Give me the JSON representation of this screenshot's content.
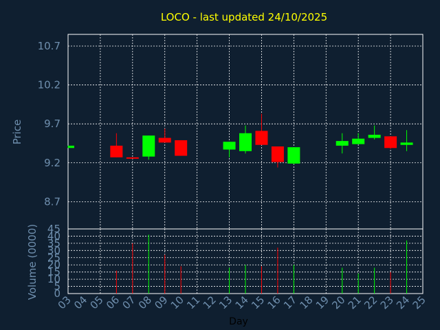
{
  "title": "LOCO - last updated 24/10/2025",
  "colors": {
    "background": "#0f1f30",
    "title": "#ffff00",
    "axis_text": "#6f8fae",
    "grid": "#ffffff",
    "up": "#00ff00",
    "down": "#ff0000",
    "frame": "#ffffff",
    "xlabel": "#000000"
  },
  "chart_data": [
    {
      "type": "candlestick",
      "ylabel": "Price",
      "ylim": [
        8.35,
        10.85
      ],
      "yticks": [
        "10.7",
        "10.2",
        "9.7",
        "9.2",
        "8.7"
      ],
      "ytick_values": [
        10.7,
        10.2,
        9.7,
        9.2,
        8.7
      ],
      "grid": true,
      "x_day_range": [
        3,
        25
      ],
      "candles": [
        {
          "day": 3,
          "open": 9.39,
          "close": 9.42,
          "high": 9.42,
          "low": 9.39
        },
        {
          "day": 6,
          "open": 9.42,
          "close": 9.27,
          "high": 9.58,
          "low": 9.27
        },
        {
          "day": 7,
          "open": 9.27,
          "close": 9.26,
          "high": 9.27,
          "low": 9.26
        },
        {
          "day": 8,
          "open": 9.28,
          "close": 9.55,
          "high": 9.55,
          "low": 9.24
        },
        {
          "day": 9,
          "open": 9.52,
          "close": 9.46,
          "high": 9.64,
          "low": 9.46
        },
        {
          "day": 10,
          "open": 9.49,
          "close": 9.29,
          "high": 9.49,
          "low": 9.29
        },
        {
          "day": 13,
          "open": 9.37,
          "close": 9.47,
          "high": 9.47,
          "low": 9.27
        },
        {
          "day": 14,
          "open": 9.35,
          "close": 9.58,
          "high": 9.68,
          "low": 9.32
        },
        {
          "day": 15,
          "open": 9.61,
          "close": 9.43,
          "high": 9.83,
          "low": 9.43
        },
        {
          "day": 16,
          "open": 9.41,
          "close": 9.21,
          "high": 9.41,
          "low": 9.14
        },
        {
          "day": 17,
          "open": 9.19,
          "close": 9.4,
          "high": 9.4,
          "low": 9.18
        },
        {
          "day": 20,
          "open": 9.42,
          "close": 9.48,
          "high": 9.58,
          "low": 9.32
        },
        {
          "day": 21,
          "open": 9.44,
          "close": 9.51,
          "high": 9.58,
          "low": 9.44
        },
        {
          "day": 22,
          "open": 9.52,
          "close": 9.56,
          "high": 9.68,
          "low": 9.5
        },
        {
          "day": 23,
          "open": 9.54,
          "close": 9.39,
          "high": 9.54,
          "low": 9.38
        },
        {
          "day": 24,
          "open": 9.43,
          "close": 9.46,
          "high": 9.62,
          "low": 9.35
        }
      ]
    },
    {
      "type": "bar",
      "xlabel": "Day",
      "ylabel": "Volume (0000)",
      "ylim": [
        0,
        45
      ],
      "yticks": [
        "45",
        "40",
        "35",
        "30",
        "25",
        "20",
        "15",
        "10",
        "5",
        "0"
      ],
      "ytick_values": [
        45,
        40,
        35,
        30,
        25,
        20,
        15,
        10,
        5,
        0
      ],
      "xtick_labels": [
        "03",
        "04",
        "05",
        "06",
        "07",
        "08",
        "09",
        "10",
        "11",
        "12",
        "13",
        "14",
        "15",
        "16",
        "17",
        "18",
        "19",
        "20",
        "21",
        "22",
        "23",
        "24",
        "25"
      ],
      "grid": true,
      "bars": [
        {
          "day": 6,
          "volume": 16,
          "color": "down"
        },
        {
          "day": 7,
          "volume": 35,
          "color": "down"
        },
        {
          "day": 8,
          "volume": 41,
          "color": "up"
        },
        {
          "day": 9,
          "volume": 27,
          "color": "down"
        },
        {
          "day": 10,
          "volume": 19,
          "color": "down"
        },
        {
          "day": 13,
          "volume": 18,
          "color": "up"
        },
        {
          "day": 14,
          "volume": 20,
          "color": "up"
        },
        {
          "day": 15,
          "volume": 19,
          "color": "down"
        },
        {
          "day": 16,
          "volume": 32,
          "color": "down"
        },
        {
          "day": 17,
          "volume": 20,
          "color": "up"
        },
        {
          "day": 20,
          "volume": 18,
          "color": "up"
        },
        {
          "day": 21,
          "volume": 14,
          "color": "up"
        },
        {
          "day": 22,
          "volume": 18,
          "color": "up"
        },
        {
          "day": 23,
          "volume": 15,
          "color": "down"
        },
        {
          "day": 24,
          "volume": 37,
          "color": "up"
        }
      ]
    }
  ]
}
